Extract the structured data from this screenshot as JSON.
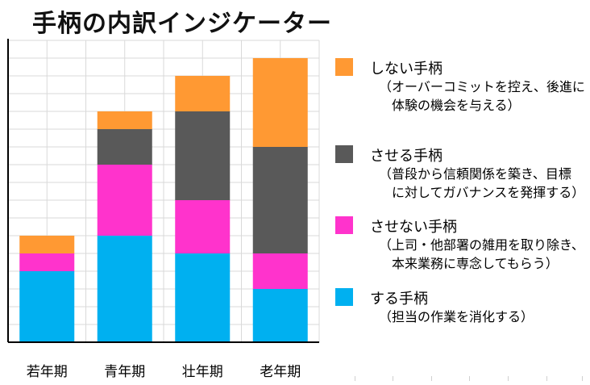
{
  "title": "手柄の内訳インジケーター",
  "chart_data": {
    "type": "bar",
    "stacked": true,
    "categories": [
      "若年期",
      "青年期",
      "壮年期",
      "老年期"
    ],
    "ylim": [
      0,
      17
    ],
    "grid": true,
    "legend_position": "right",
    "series": [
      {
        "name": "する手柄",
        "color": "#00B0F0",
        "values": [
          4,
          6,
          5,
          3
        ]
      },
      {
        "name": "させない手柄",
        "color": "#FF33CC",
        "values": [
          1,
          4,
          3,
          2
        ]
      },
      {
        "name": "させる手柄",
        "color": "#595959",
        "values": [
          0,
          2,
          5,
          6
        ]
      },
      {
        "name": "しない手柄",
        "color": "#FF9933",
        "values": [
          1,
          1,
          2,
          5
        ]
      }
    ]
  },
  "legend": [
    {
      "label": "しない手柄",
      "color": "#FF9933",
      "desc": "（オーバーコミットを控え、後進に\n　体験の機会を与える）"
    },
    {
      "label": "させる手柄",
      "color": "#595959",
      "desc": "（普段から信頼関係を築き、目標\n　に対してガバナンスを発揮する）"
    },
    {
      "label": "させない手柄",
      "color": "#FF33CC",
      "desc": "（上司・他部署の雑用を取り除き、\n　本来業務に専念してもらう）"
    },
    {
      "label": "する手柄",
      "color": "#00B0F0",
      "desc": "（担当の作業を消化する）"
    }
  ]
}
